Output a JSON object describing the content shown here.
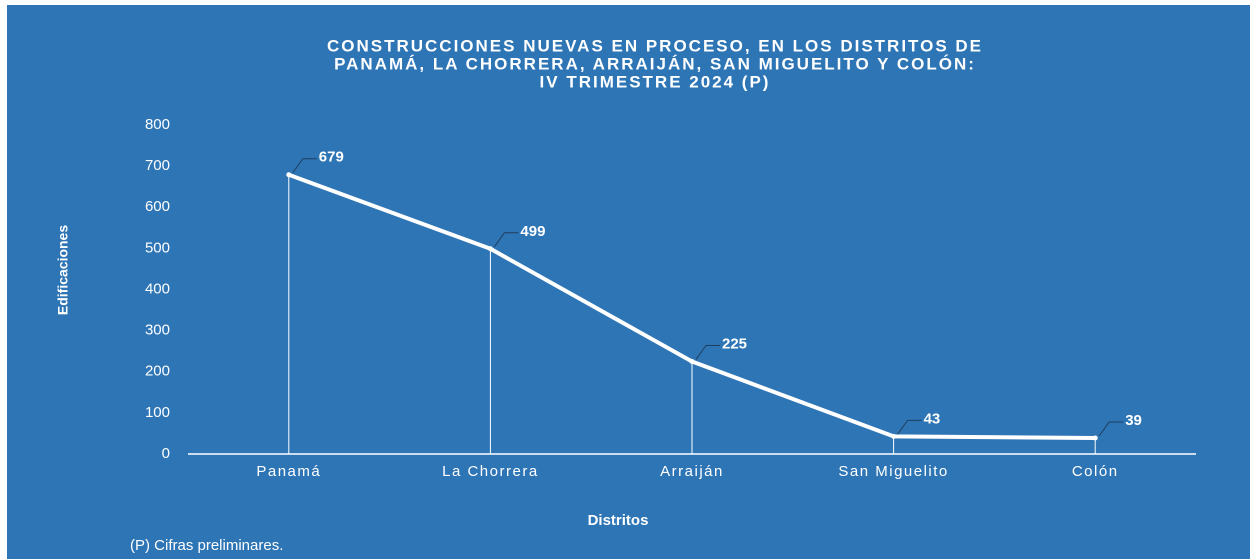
{
  "chart_data": {
    "type": "line",
    "title": [
      "CONSTRUCCIONES NUEVAS EN PROCESO, EN LOS DISTRITOS DE",
      "PANAMÁ, LA CHORRERA, ARRAIJÁN, SAN MIGUELITO Y COLÓN:",
      "IV TRIMESTRE 2024 (P)"
    ],
    "y_label": "Edificaciones",
    "x_label": "Distritos",
    "footnote": "(P) Cifras preliminares.",
    "categories": [
      "Panamá",
      "La Chorrera",
      "Arraiján",
      "San Miguelito",
      "Colón"
    ],
    "values": [
      679,
      499,
      225,
      43,
      39
    ],
    "color": "#ffffff",
    "ylim": [
      0,
      800
    ],
    "yticks": [
      0,
      100,
      200,
      300,
      400,
      500,
      600,
      700,
      800
    ]
  }
}
